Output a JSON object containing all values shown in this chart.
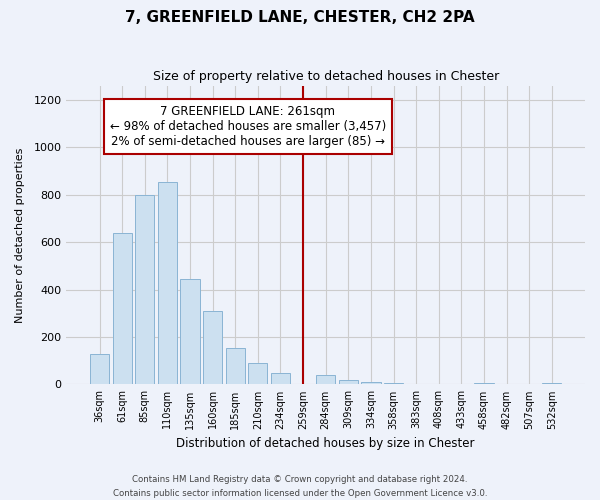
{
  "title": "7, GREENFIELD LANE, CHESTER, CH2 2PA",
  "subtitle": "Size of property relative to detached houses in Chester",
  "xlabel": "Distribution of detached houses by size in Chester",
  "ylabel": "Number of detached properties",
  "bar_labels": [
    "36sqm",
    "61sqm",
    "85sqm",
    "110sqm",
    "135sqm",
    "160sqm",
    "185sqm",
    "210sqm",
    "234sqm",
    "259sqm",
    "284sqm",
    "309sqm",
    "334sqm",
    "358sqm",
    "383sqm",
    "408sqm",
    "433sqm",
    "458sqm",
    "482sqm",
    "507sqm",
    "532sqm"
  ],
  "bar_values": [
    130,
    640,
    800,
    855,
    445,
    310,
    155,
    90,
    50,
    0,
    40,
    20,
    10,
    5,
    0,
    0,
    0,
    5,
    0,
    0,
    5
  ],
  "bar_color": "#cce0f0",
  "bar_edge_color": "#8ab4d4",
  "vline_x_index": 9,
  "vline_color": "#aa0000",
  "annotation_title": "7 GREENFIELD LANE: 261sqm",
  "annotation_line1": "← 98% of detached houses are smaller (3,457)",
  "annotation_line2": "2% of semi-detached houses are larger (85) →",
  "ylim": [
    0,
    1260
  ],
  "yticks": [
    0,
    200,
    400,
    600,
    800,
    1000,
    1200
  ],
  "footer_line1": "Contains HM Land Registry data © Crown copyright and database right 2024.",
  "footer_line2": "Contains public sector information licensed under the Open Government Licence v3.0.",
  "background_color": "#eef2fa",
  "grid_color": "#cccccc"
}
